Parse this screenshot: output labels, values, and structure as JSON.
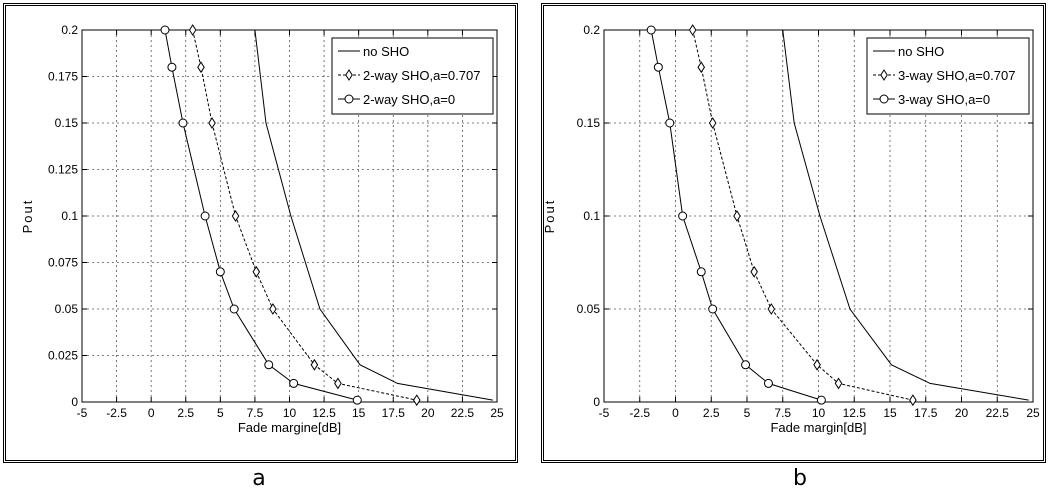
{
  "panels": [
    {
      "caption": "a",
      "chart_data": {
        "type": "line",
        "xlabel": "Fade margine[dB]",
        "ylabel": "Pout",
        "xlim": [
          -5,
          25
        ],
        "ylim": [
          0,
          0.2
        ],
        "x_ticks": [
          "-5",
          "-2.5",
          "0",
          "2.5",
          "5",
          "7.5",
          "10",
          "12.5",
          "15",
          "17.5",
          "20",
          "22.5",
          "25"
        ],
        "y_ticks": [
          "0",
          "0.025",
          "0.05",
          "0.075",
          "0.1",
          "0.125",
          "0.15",
          "0.175",
          "0.2"
        ],
        "y_tick_values": [
          0,
          0.025,
          0.05,
          0.075,
          0.1,
          0.125,
          0.15,
          0.175,
          0.2
        ],
        "grid": true,
        "legend_position": "top-right",
        "series": [
          {
            "name": "no SHO",
            "marker": "none",
            "dash": "solid",
            "x": [
              7.5,
              8.3,
              10.1,
              12.2,
              15.1,
              17.8,
              24.7
            ],
            "y": [
              0.2,
              0.15,
              0.1,
              0.05,
              0.02,
              0.01,
              0.001
            ]
          },
          {
            "name": "2-way SHO,a=0.707",
            "marker": "diamond",
            "dash": "dashed",
            "x": [
              3.0,
              3.6,
              4.4,
              6.1,
              7.6,
              8.8,
              11.8,
              13.5,
              19.2
            ],
            "y": [
              0.2,
              0.18,
              0.15,
              0.1,
              0.07,
              0.05,
              0.02,
              0.01,
              0.001
            ]
          },
          {
            "name": "2-way SHO,a=0",
            "marker": "circle",
            "dash": "solid",
            "x": [
              1.0,
              1.5,
              2.3,
              3.9,
              5.0,
              6.0,
              8.5,
              10.3,
              14.9
            ],
            "y": [
              0.2,
              0.18,
              0.15,
              0.1,
              0.07,
              0.05,
              0.02,
              0.01,
              0.001
            ]
          }
        ]
      }
    },
    {
      "caption": "b",
      "chart_data": {
        "type": "line",
        "xlabel": "Fade margin[dB]",
        "ylabel": "Pout",
        "xlim": [
          -5,
          25
        ],
        "ylim": [
          0,
          0.2
        ],
        "x_ticks": [
          "-5",
          "-2.5",
          "0",
          "2.5",
          "5",
          "7.5",
          "10",
          "12.5",
          "15",
          "17.5",
          "20",
          "22.5",
          "25"
        ],
        "y_ticks": [
          "0",
          "0.05",
          "0.1",
          "0.15",
          "0.2"
        ],
        "y_tick_values": [
          0,
          0.05,
          0.1,
          0.15,
          0.2
        ],
        "grid": true,
        "legend_position": "top-right",
        "series": [
          {
            "name": "no SHO",
            "marker": "none",
            "dash": "solid",
            "x": [
              7.5,
              8.3,
              10.1,
              12.2,
              15.1,
              17.8,
              24.7
            ],
            "y": [
              0.2,
              0.15,
              0.1,
              0.05,
              0.02,
              0.01,
              0.001
            ]
          },
          {
            "name": "3-way SHO,a=0.707",
            "marker": "diamond",
            "dash": "dashed",
            "x": [
              1.2,
              1.8,
              2.6,
              4.3,
              5.5,
              6.7,
              9.9,
              11.4,
              16.6
            ],
            "y": [
              0.2,
              0.18,
              0.15,
              0.1,
              0.07,
              0.05,
              0.02,
              0.01,
              0.001
            ]
          },
          {
            "name": "3-way SHO,a=0",
            "marker": "circle",
            "dash": "solid",
            "x": [
              -1.7,
              -1.2,
              -0.4,
              0.5,
              1.8,
              2.6,
              4.9,
              6.5,
              10.2
            ],
            "y": [
              0.2,
              0.18,
              0.15,
              0.1,
              0.07,
              0.05,
              0.02,
              0.01,
              0.001
            ]
          }
        ]
      }
    }
  ]
}
